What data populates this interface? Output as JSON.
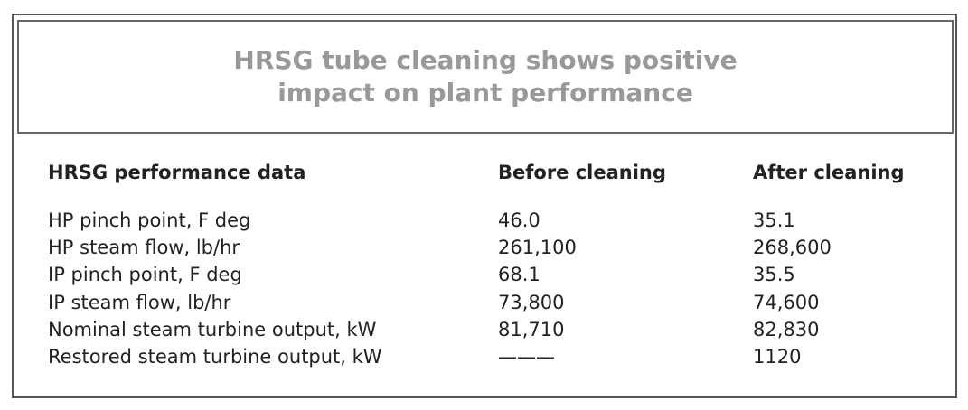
{
  "header": {
    "title_lines": [
      "HRSG tube cleaning shows positive",
      "impact on plant performance"
    ]
  },
  "table": {
    "columns": [
      "HRSG performance data",
      "Before cleaning",
      "After cleaning"
    ],
    "rows": [
      [
        "HP pinch point, F deg",
        "46.0",
        "35.1"
      ],
      [
        "HP steam flow, lb/hr",
        "261,100",
        "268,600"
      ],
      [
        "IP pinch point, F deg",
        "68.1",
        "35.5"
      ],
      [
        "IP steam flow, lb/hr",
        "73,800",
        "74,600"
      ],
      [
        "Nominal steam turbine output, kW",
        "81,710",
        "82,830"
      ],
      [
        "Restored steam turbine output, kW",
        "———",
        "1120"
      ]
    ]
  }
}
